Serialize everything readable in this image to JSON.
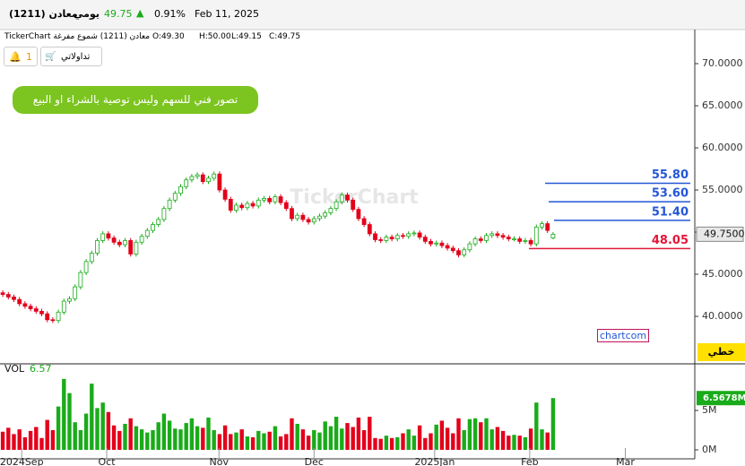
{
  "header": {
    "name": "معادن (1211)",
    "period": "يومي",
    "price": "49.75",
    "arrow": "▲",
    "change": "0.91%",
    "date": "Feb 11, 2025"
  },
  "legend": {
    "title": "TickerChart معادن (1211) شموع مفرغة",
    "open": "O:49.30",
    "high": "H:50.00",
    "low": "L:49.15",
    "close": "C:49.75"
  },
  "toolbar": {
    "alerts": "1",
    "portfolio": "تداولاتي"
  },
  "note": "تصور فني للسهم وليس توصية بالشراء او البيع",
  "watermark": "TickerChart",
  "tag": "chartcom",
  "mode_button": "خطي",
  "chart_data": [
    {
      "type": "candlestick",
      "up_color": "#1aab1a",
      "down_color": "#e3001b",
      "open": [
        42.8,
        42.6,
        42.3,
        42.0,
        41.5,
        41.2,
        40.9,
        40.6,
        40.3,
        39.6,
        39.5,
        40.5,
        41.8,
        42.1,
        43.5,
        45.2,
        46.5,
        47.5,
        49.0,
        49.8,
        49.3,
        48.8,
        48.5,
        49.0,
        47.4,
        48.8,
        49.5,
        50.2,
        50.9,
        51.5,
        52.8,
        53.8,
        54.6,
        55.4,
        56.2,
        56.6,
        56.8,
        56.0,
        56.4,
        56.9,
        55.0,
        53.9,
        52.6,
        53.2,
        52.9,
        53.4,
        53.1,
        53.8,
        54.0,
        53.6,
        54.2,
        53.5,
        52.8,
        51.6,
        52.0,
        51.5,
        51.2,
        51.6,
        51.9,
        52.3,
        52.8,
        53.6,
        54.4,
        53.8,
        52.7,
        51.6,
        50.9,
        49.8,
        49.1,
        49.0,
        49.4,
        49.2,
        49.6,
        49.5,
        49.8,
        49.9,
        49.4,
        48.9,
        48.6,
        48.7,
        48.4,
        48.1,
        47.8,
        47.3,
        47.9,
        48.6,
        49.2,
        49.0,
        49.6,
        49.8,
        49.6,
        49.4,
        49.2,
        49.2,
        48.9,
        49.0,
        48.6,
        50.6,
        51.0,
        49.3
      ],
      "high": [
        43.1,
        42.9,
        42.6,
        42.3,
        41.8,
        41.5,
        41.2,
        40.9,
        40.6,
        39.9,
        40.8,
        42.1,
        42.4,
        43.8,
        45.5,
        46.8,
        47.8,
        49.3,
        50.1,
        50.1,
        49.6,
        49.1,
        49.3,
        49.3,
        49.1,
        49.8,
        50.5,
        51.2,
        51.8,
        53.1,
        54.1,
        54.9,
        55.7,
        56.5,
        56.9,
        57.1,
        57.1,
        56.7,
        57.2,
        57.2,
        55.3,
        54.2,
        53.5,
        53.5,
        53.7,
        53.7,
        54.1,
        54.3,
        54.3,
        54.5,
        54.5,
        53.8,
        53.1,
        52.3,
        52.3,
        51.8,
        51.9,
        52.2,
        52.6,
        53.1,
        53.9,
        54.7,
        54.7,
        54.1,
        53.0,
        51.9,
        51.2,
        50.1,
        49.4,
        49.7,
        49.7,
        49.9,
        49.9,
        50.1,
        50.2,
        50.2,
        49.7,
        49.2,
        49.0,
        49.0,
        48.7,
        48.4,
        48.1,
        48.2,
        48.9,
        49.5,
        49.5,
        49.9,
        50.1,
        50.1,
        49.9,
        49.7,
        49.5,
        49.5,
        49.3,
        49.3,
        50.9,
        51.3,
        51.3,
        50.0
      ],
      "low": [
        42.3,
        42.0,
        41.7,
        41.2,
        40.9,
        40.6,
        40.3,
        40.0,
        39.3,
        39.2,
        39.2,
        40.2,
        41.5,
        41.8,
        43.2,
        44.9,
        46.2,
        47.2,
        48.7,
        49.0,
        48.5,
        48.2,
        48.2,
        47.1,
        47.1,
        48.5,
        49.2,
        49.9,
        50.6,
        51.2,
        52.5,
        53.5,
        54.3,
        55.1,
        55.9,
        56.3,
        55.7,
        55.7,
        56.1,
        54.7,
        53.6,
        52.3,
        52.3,
        52.6,
        52.6,
        52.8,
        52.8,
        53.5,
        53.3,
        53.3,
        53.2,
        52.5,
        51.3,
        51.3,
        51.2,
        50.9,
        50.9,
        51.3,
        51.6,
        52.0,
        52.5,
        53.3,
        53.5,
        52.4,
        51.3,
        50.6,
        49.5,
        48.8,
        48.7,
        48.7,
        48.9,
        48.9,
        49.2,
        49.2,
        49.5,
        49.1,
        48.6,
        48.3,
        48.3,
        48.1,
        47.8,
        47.5,
        47.0,
        47.0,
        47.6,
        48.3,
        48.7,
        48.7,
        49.3,
        49.3,
        49.1,
        48.9,
        48.9,
        48.6,
        48.6,
        48.3,
        48.3,
        50.3,
        49.9,
        49.15
      ],
      "close": [
        42.6,
        42.3,
        42.0,
        41.5,
        41.2,
        40.9,
        40.6,
        40.3,
        39.6,
        39.5,
        40.5,
        41.8,
        42.1,
        43.5,
        45.2,
        46.5,
        47.5,
        49.0,
        49.8,
        49.3,
        48.8,
        48.5,
        49.0,
        47.4,
        48.8,
        49.5,
        50.2,
        50.9,
        51.5,
        52.8,
        53.8,
        54.6,
        55.4,
        56.2,
        56.6,
        56.8,
        56.0,
        56.4,
        56.9,
        55.0,
        53.9,
        52.6,
        53.2,
        52.9,
        53.4,
        53.1,
        53.8,
        54.0,
        53.6,
        54.2,
        53.5,
        52.8,
        51.6,
        52.0,
        51.5,
        51.2,
        51.6,
        51.9,
        52.3,
        52.8,
        53.6,
        54.4,
        53.8,
        52.7,
        51.6,
        50.9,
        49.8,
        49.1,
        49.0,
        49.4,
        49.2,
        49.6,
        49.5,
        49.8,
        49.9,
        49.4,
        48.9,
        48.6,
        48.7,
        48.4,
        48.1,
        47.8,
        47.3,
        47.9,
        48.6,
        49.2,
        49.0,
        49.6,
        49.8,
        49.6,
        49.4,
        49.2,
        49.2,
        48.9,
        49.0,
        48.6,
        50.6,
        51.0,
        50.2,
        49.75
      ],
      "xlim": [
        -0.5,
        124.5
      ],
      "ylim": [
        34.47,
        73.83
      ],
      "yticks": [
        {
          "value": 70,
          "label": "70.0000"
        },
        {
          "value": 65,
          "label": "65.0000"
        },
        {
          "value": 60,
          "label": "60.0000"
        },
        {
          "value": 55,
          "label": "55.0000"
        },
        {
          "value": 50,
          "label": "50.0000"
        },
        {
          "value": 45,
          "label": "45.0000"
        },
        {
          "value": 40,
          "label": "40.0000"
        }
      ],
      "levels": [
        {
          "value": 55.8,
          "label": "55.80",
          "color": "#2457d6"
        },
        {
          "value": 53.6,
          "label": "53.60",
          "color": "#2457d6"
        },
        {
          "value": 51.4,
          "label": "51.40",
          "color": "#2457d6"
        },
        {
          "value": 48.05,
          "label": "48.05",
          "color": "#e3173a"
        }
      ],
      "last": {
        "value": 49.75,
        "label": "49.7500"
      }
    },
    {
      "type": "volume",
      "title": "VOL",
      "title_value": "6.57",
      "values": [
        2.3,
        2.8,
        2.0,
        2.6,
        1.6,
        2.4,
        2.9,
        1.5,
        3.8,
        2.5,
        5.5,
        9.0,
        7.2,
        3.5,
        2.5,
        4.6,
        8.4,
        5.3,
        6.0,
        4.8,
        3.1,
        2.4,
        3.3,
        4.0,
        3.0,
        2.6,
        2.2,
        2.5,
        3.5,
        4.6,
        3.7,
        2.7,
        2.6,
        3.4,
        4.0,
        3.0,
        2.8,
        4.1,
        2.5,
        2.0,
        3.1,
        2.0,
        2.2,
        2.6,
        1.7,
        1.6,
        2.4,
        2.1,
        2.3,
        3.0,
        1.7,
        2.0,
        4.0,
        3.3,
        2.6,
        1.8,
        2.5,
        2.2,
        3.6,
        3.0,
        4.2,
        2.7,
        3.4,
        2.9,
        4.1,
        2.5,
        4.2,
        1.5,
        1.4,
        1.8,
        1.5,
        1.6,
        2.1,
        2.6,
        1.8,
        3.1,
        1.5,
        2.1,
        3.2,
        3.7,
        2.8,
        2.1,
        4.0,
        2.5,
        3.9,
        4.0,
        3.5,
        4.0,
        2.6,
        2.9,
        2.4,
        1.8,
        1.9,
        1.8,
        1.6,
        2.7,
        6.0,
        2.6,
        2.2,
        6.57
      ],
      "xlim": [
        -0.5,
        124.5
      ],
      "ylim": [
        -1.14,
        10.8
      ],
      "yticks": [
        {
          "value": 5,
          "label": "5M"
        },
        {
          "value": 0,
          "label": "0M"
        }
      ],
      "xticks": [
        {
          "value": 3.4,
          "label": "2024Sep"
        },
        {
          "value": 18.7,
          "label": "Oct"
        },
        {
          "value": 38.9,
          "label": "Nov"
        },
        {
          "value": 56,
          "label": "Dec"
        },
        {
          "value": 77.7,
          "label": "2025Jan"
        },
        {
          "value": 94.8,
          "label": "Feb"
        },
        {
          "value": 112,
          "label": "Mar"
        }
      ],
      "last": {
        "value": 6.5678,
        "label": "6.5678M"
      }
    }
  ]
}
